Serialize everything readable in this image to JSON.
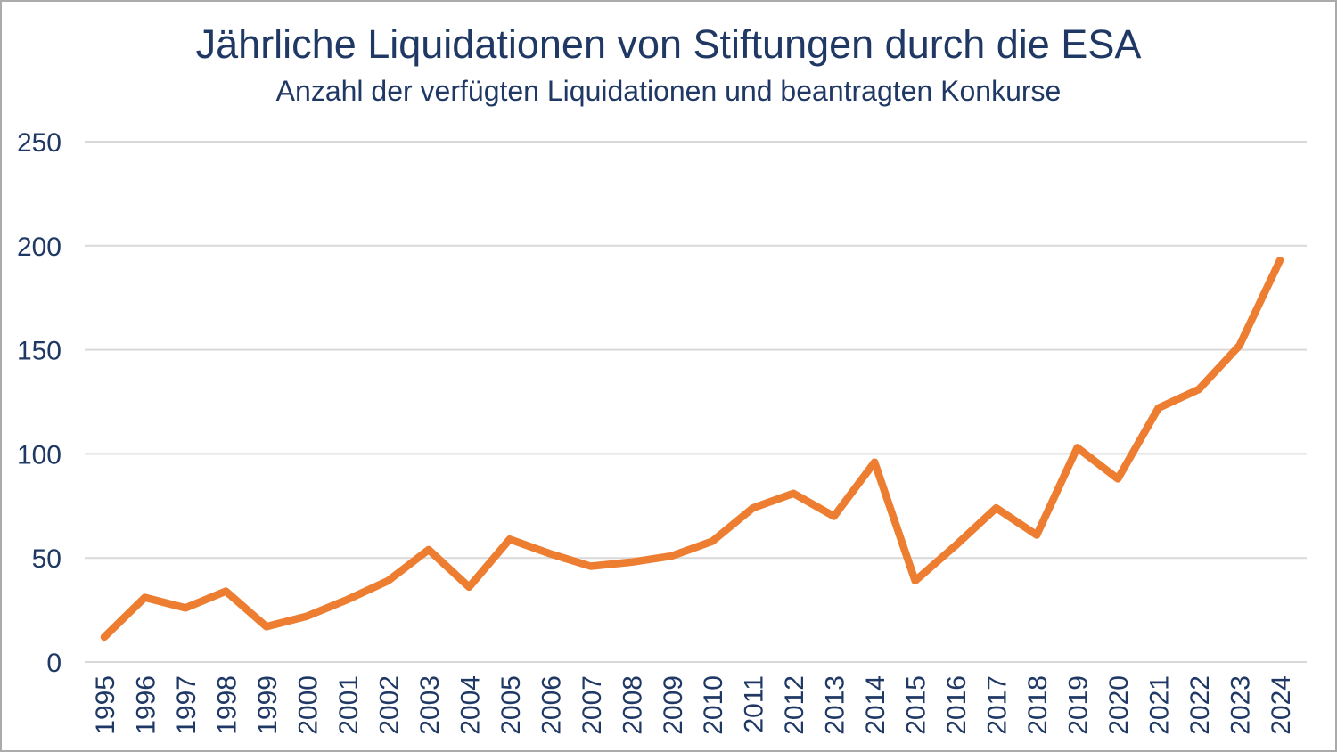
{
  "header": {
    "title": "Jährliche Liquidationen von Stiftungen durch die ESA",
    "subtitle": "Anzahl der verfügten Liquidationen und beantragten Konkurse"
  },
  "colors": {
    "line": "#ED7D31",
    "text": "#1F3864",
    "gridline": "#D9D9D9",
    "frame_border": "#ABABAB",
    "background": "#FFFFFF"
  },
  "chart_data": {
    "type": "line",
    "title": "Jährliche Liquidationen von Stiftungen durch die ESA",
    "subtitle": "Anzahl der verfügten Liquidationen und beantragten Konkurse",
    "categories": [
      "1995",
      "1996",
      "1997",
      "1998",
      "1999",
      "2000",
      "2001",
      "2002",
      "2003",
      "2004",
      "2005",
      "2006",
      "2007",
      "2008",
      "2009",
      "2010",
      "2011",
      "2012",
      "2013",
      "2014",
      "2015",
      "2016",
      "2017",
      "2018",
      "2019",
      "2020",
      "2021",
      "2022",
      "2023",
      "2024"
    ],
    "values": [
      12,
      31,
      26,
      34,
      17,
      22,
      30,
      39,
      54,
      36,
      59,
      52,
      46,
      48,
      51,
      58,
      74,
      81,
      70,
      96,
      39,
      56,
      74,
      61,
      103,
      88,
      122,
      131,
      152,
      193
    ],
    "series_name": "Liquidationen",
    "xlabel": "",
    "ylabel": "",
    "ylim": [
      0,
      250
    ],
    "yticks": [
      0,
      50,
      100,
      150,
      200,
      250
    ],
    "grid": "horizontal",
    "legend": "none",
    "x_tick_rotation": -90
  }
}
